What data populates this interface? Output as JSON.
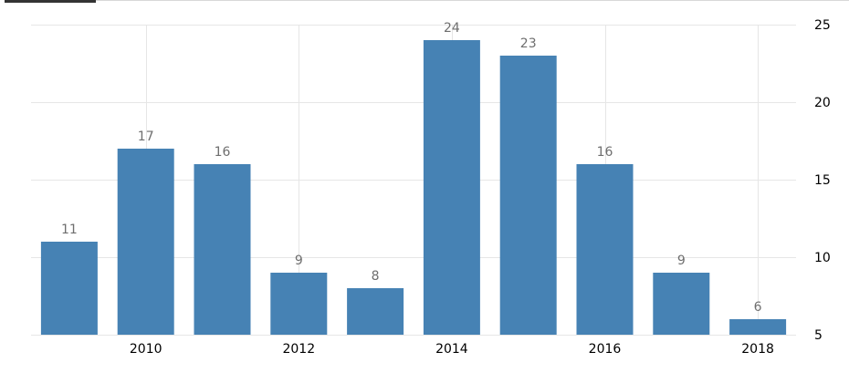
{
  "chart_data": {
    "type": "bar",
    "x": [
      2009,
      2010,
      2011,
      2012,
      2013,
      2014,
      2015,
      2016,
      2017,
      2018
    ],
    "values": [
      11,
      17,
      16,
      9,
      8,
      24,
      23,
      16,
      9,
      6
    ],
    "x_ticks": [
      2010,
      2012,
      2014,
      2016,
      2018
    ],
    "x_tick_labels": [
      "2010",
      "2012",
      "2014",
      "2016",
      "2018"
    ],
    "y_ticks": [
      5,
      10,
      15,
      20,
      25
    ],
    "y_tick_labels": [
      "5",
      "10",
      "15",
      "20",
      "25"
    ],
    "data_labels": [
      "11",
      "17",
      "16",
      "9",
      "8",
      "24",
      "23",
      "16",
      "9",
      "6"
    ],
    "ylim": [
      5,
      25
    ],
    "xlim": [
      2008.5,
      2018.5
    ],
    "y_axis_side": "right",
    "grid": true,
    "colors": {
      "bar": "#4682b4",
      "grid": "#e6e6e6",
      "data_label": "#6e6e6e",
      "tick_label": "#000000"
    },
    "title": "",
    "xlabel": "",
    "ylabel": ""
  }
}
